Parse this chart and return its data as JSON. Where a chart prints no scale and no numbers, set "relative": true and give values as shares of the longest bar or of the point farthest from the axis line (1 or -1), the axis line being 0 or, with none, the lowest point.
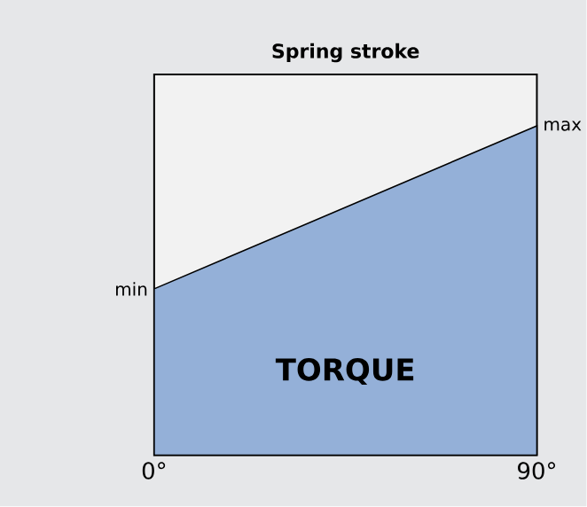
{
  "chart_data": {
    "type": "area",
    "title": "Spring stroke",
    "x": [
      0,
      90
    ],
    "series": [
      {
        "color": "#94b0d8",
        "values": [
          0.505,
          1
        ]
      }
    ],
    "relative": true,
    "xlim": [
      0,
      90
    ],
    "xticks": [
      {
        "value": 0,
        "label": "0°"
      },
      {
        "value": 90,
        "label": "90°"
      }
    ],
    "annotations": [
      {
        "text": "min",
        "x": 0,
        "y": 0.505
      },
      {
        "text": "max",
        "x": 90,
        "y": 1
      },
      "TORQUE"
    ]
  }
}
